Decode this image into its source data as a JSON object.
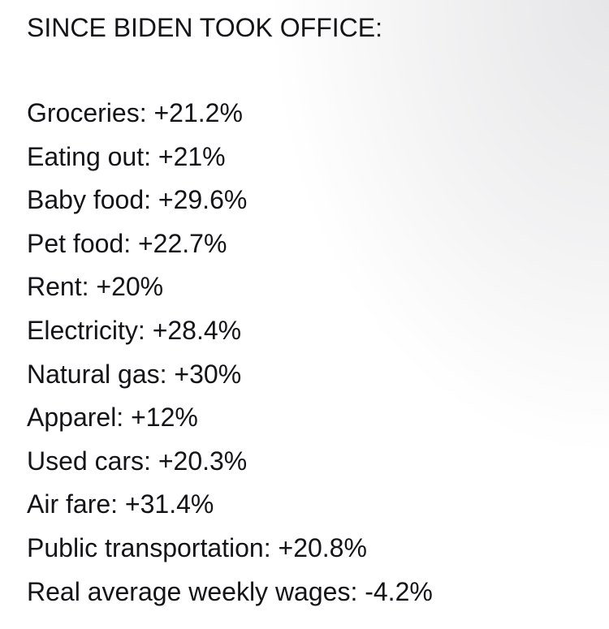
{
  "title": "SINCE BIDEN TOOK OFFICE:",
  "lines": [
    "Groceries: +21.2%",
    "Eating out: +21%",
    "Baby food: +29.6%",
    "Pet food: +22.7%",
    "Rent: +20%",
    "Electricity: +28.4%",
    "Natural gas: +30%",
    "Apparel: +12%",
    "Used cars: +20.3%",
    "Air fare: +31.4%",
    "Public transportation: +20.8%",
    "Real average weekly wages: -4.2%"
  ]
}
